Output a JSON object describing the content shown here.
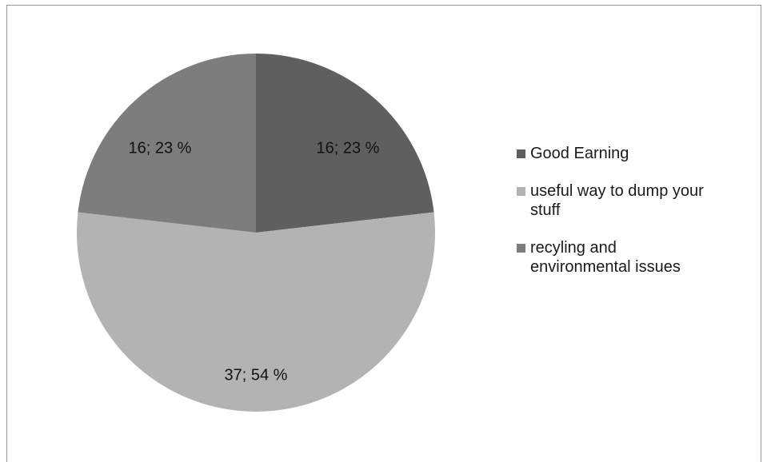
{
  "chart_data": {
    "type": "pie",
    "title": "",
    "slices": [
      {
        "name": "Good Earning",
        "value": 16,
        "percent": 23,
        "label": "16; 23 %",
        "color": "#5f5f5f"
      },
      {
        "name": "useful way to dump your stuff",
        "value": 37,
        "percent": 54,
        "label": "37; 54 %",
        "color": "#b3b3b3"
      },
      {
        "name": "recyling and environmental issues",
        "value": 16,
        "percent": 23,
        "label": "16; 23 %",
        "color": "#7d7d7d"
      }
    ],
    "legend_position": "right"
  }
}
